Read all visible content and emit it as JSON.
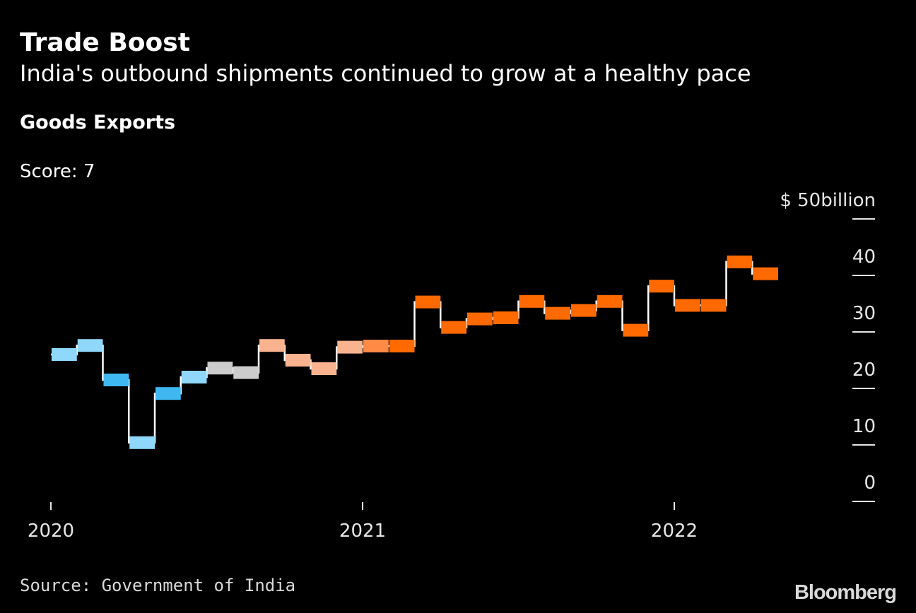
{
  "title": "Trade Boost",
  "subtitle": "India's outbound shipments continued to grow at a healthy pace",
  "score_label": "Score: 7",
  "source": "Source: Government of India",
  "logo": "Bloomberg",
  "colors": {
    "background": "#000000",
    "step_line": "#ffffff",
    "light_blue": "#8fd8fa",
    "blue": "#3fb8f2",
    "gray": "#cccccc",
    "peach": "#f9b48f",
    "light_orange": "#ff8a45",
    "orange": "#ff6a00"
  },
  "chart_data": {
    "type": "step-line",
    "title": "Goods Exports",
    "ylabel": "$ 50billion",
    "ylim": [
      0,
      50
    ],
    "y_ticks": [
      0,
      10,
      20,
      30,
      40,
      50
    ],
    "y_tick_labels": [
      "0",
      "10",
      "20",
      "30",
      "40",
      "$ 50billion"
    ],
    "x_ticks": [
      "2020",
      "2021",
      "2022"
    ],
    "series": [
      {
        "name": "Goods Exports",
        "points": [
          {
            "month": "2020-01",
            "value": 26,
            "color": "light_blue"
          },
          {
            "month": "2020-02",
            "value": 27.6,
            "color": "light_blue"
          },
          {
            "month": "2020-03",
            "value": 21.5,
            "color": "blue"
          },
          {
            "month": "2020-04",
            "value": 10.4,
            "color": "light_blue"
          },
          {
            "month": "2020-05",
            "value": 19.1,
            "color": "blue"
          },
          {
            "month": "2020-06",
            "value": 22,
            "color": "light_blue"
          },
          {
            "month": "2020-07",
            "value": 23.6,
            "color": "gray"
          },
          {
            "month": "2020-08",
            "value": 22.8,
            "color": "gray"
          },
          {
            "month": "2020-09",
            "value": 27.6,
            "color": "peach"
          },
          {
            "month": "2020-10",
            "value": 25,
            "color": "peach"
          },
          {
            "month": "2020-11",
            "value": 23.5,
            "color": "peach"
          },
          {
            "month": "2020-12",
            "value": 27.3,
            "color": "peach"
          },
          {
            "month": "2021-01",
            "value": 27.5,
            "color": "light_orange"
          },
          {
            "month": "2021-02",
            "value": 27.5,
            "color": "orange"
          },
          {
            "month": "2021-03",
            "value": 35.3,
            "color": "orange"
          },
          {
            "month": "2021-04",
            "value": 30.8,
            "color": "orange"
          },
          {
            "month": "2021-05",
            "value": 32.3,
            "color": "orange"
          },
          {
            "month": "2021-06",
            "value": 32.5,
            "color": "orange"
          },
          {
            "month": "2021-07",
            "value": 35.4,
            "color": "orange"
          },
          {
            "month": "2021-08",
            "value": 33.3,
            "color": "orange"
          },
          {
            "month": "2021-09",
            "value": 33.8,
            "color": "orange"
          },
          {
            "month": "2021-10",
            "value": 35.4,
            "color": "orange"
          },
          {
            "month": "2021-11",
            "value": 30.3,
            "color": "orange"
          },
          {
            "month": "2021-12",
            "value": 38.1,
            "color": "orange"
          },
          {
            "month": "2022-01",
            "value": 34.7,
            "color": "orange"
          },
          {
            "month": "2022-02",
            "value": 34.7,
            "color": "orange"
          },
          {
            "month": "2022-03",
            "value": 42.4,
            "color": "orange"
          },
          {
            "month": "2022-04",
            "value": 40.3,
            "color": "orange"
          }
        ]
      }
    ]
  }
}
